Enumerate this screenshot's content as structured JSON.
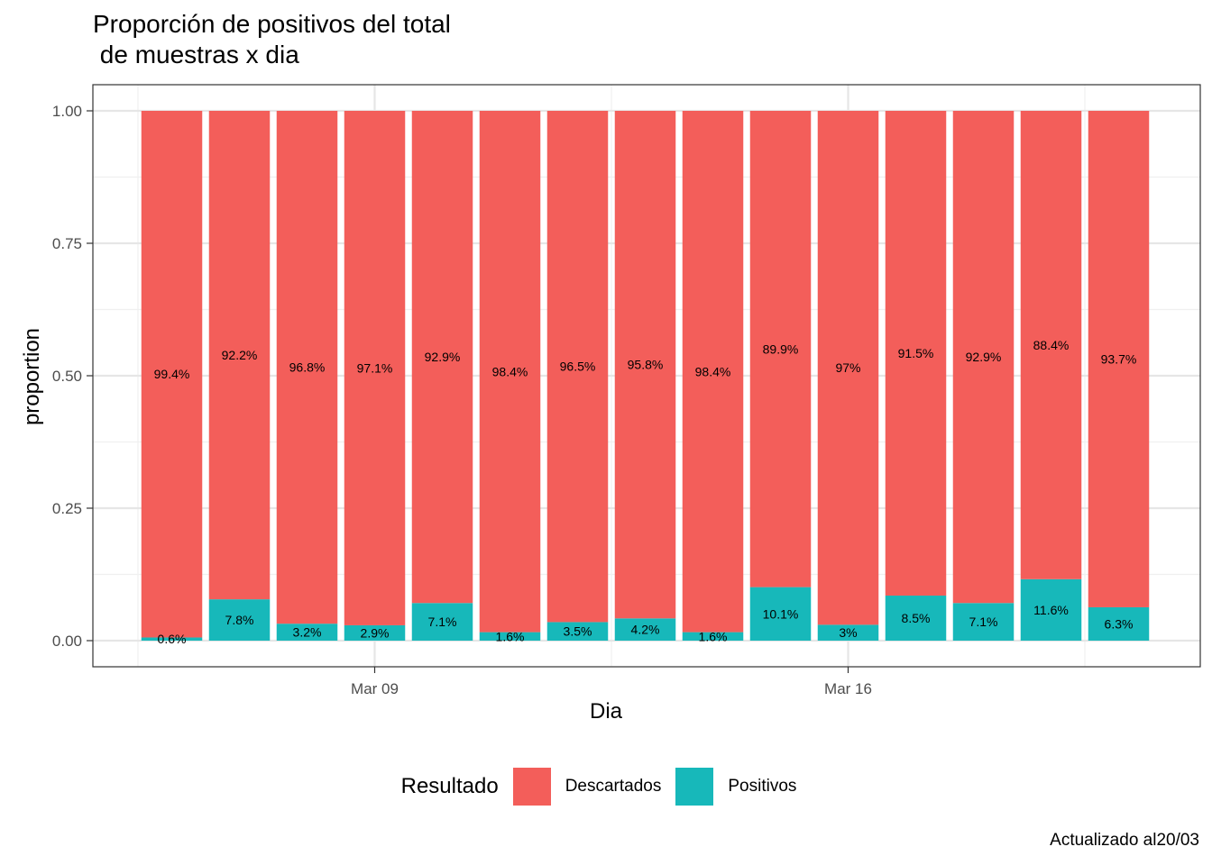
{
  "chart_data": {
    "type": "bar",
    "stacked": true,
    "title": "Proporción de positivos del total\n de muestras x dia",
    "xlabel": "Dia",
    "ylabel": "proportion",
    "caption": "Actualizado al20/03",
    "ylim": [
      0,
      1
    ],
    "yticks": [
      "0.00",
      "0.25",
      "0.50",
      "0.75",
      "1.00"
    ],
    "xticks": [
      {
        "label": "Mar 09",
        "date": "2020-03-09"
      },
      {
        "label": "Mar 16",
        "date": "2020-03-16"
      }
    ],
    "categories": [
      "2020-03-06",
      "2020-03-07",
      "2020-03-08",
      "2020-03-09",
      "2020-03-10",
      "2020-03-11",
      "2020-03-12",
      "2020-03-13",
      "2020-03-14",
      "2020-03-15",
      "2020-03-16",
      "2020-03-17",
      "2020-03-18",
      "2020-03-19",
      "2020-03-20"
    ],
    "legend": {
      "title": "Resultado",
      "position": "bottom"
    },
    "grid": true,
    "series": [
      {
        "name": "Descartados",
        "color": "#F35E5A",
        "values": [
          0.994,
          0.922,
          0.968,
          0.971,
          0.929,
          0.984,
          0.965,
          0.958,
          0.984,
          0.899,
          0.97,
          0.915,
          0.929,
          0.884,
          0.937
        ],
        "labels": [
          "99.4%",
          "92.2%",
          "96.8%",
          "97.1%",
          "92.9%",
          "98.4%",
          "96.5%",
          "95.8%",
          "98.4%",
          "89.9%",
          "97%",
          "91.5%",
          "92.9%",
          "88.4%",
          "93.7%"
        ]
      },
      {
        "name": "Positivos",
        "color": "#17B8BA",
        "values": [
          0.006,
          0.078,
          0.032,
          0.029,
          0.071,
          0.016,
          0.035,
          0.042,
          0.016,
          0.101,
          0.03,
          0.085,
          0.071,
          0.116,
          0.063
        ],
        "labels": [
          "0.6%",
          "7.8%",
          "3.2%",
          "2.9%",
          "7.1%",
          "1.6%",
          "3.5%",
          "4.2%",
          "1.6%",
          "10.1%",
          "3%",
          "8.5%",
          "7.1%",
          "11.6%",
          "6.3%"
        ]
      }
    ]
  }
}
